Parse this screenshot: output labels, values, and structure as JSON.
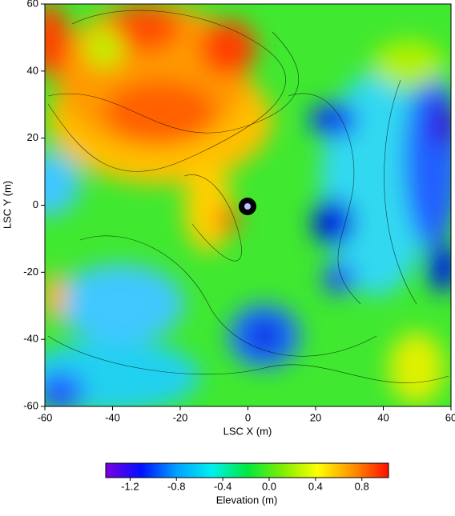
{
  "chart_data": {
    "type": "contour",
    "x_label": "LSC X (m)",
    "y_label": "LSC Y (m)",
    "xlim": [
      -60,
      60
    ],
    "ylim": [
      -60,
      60
    ],
    "xticks": [
      -60,
      -40,
      -20,
      0,
      20,
      40,
      60
    ],
    "yticks": [
      -60,
      -40,
      -20,
      0,
      20,
      40,
      60
    ],
    "colorbar": {
      "label": "Elevation (m)",
      "clim": [
        -1.41,
        1.03
      ],
      "ticks": [
        -1.2,
        -0.8,
        -0.4,
        {
          "value": 0,
          "label": "0.0"
        },
        0.4,
        0.8
      ],
      "colormap": [
        "#7a00e0",
        "#0010ff",
        "#00a0ff",
        "#00f0f0",
        "#00e840",
        "#80ee00",
        "#ffff00",
        "#ff9000",
        "#ff1000"
      ]
    }
  }
}
